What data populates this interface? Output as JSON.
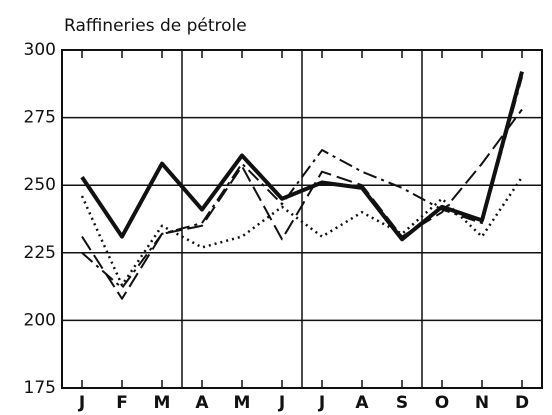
{
  "chart_data": {
    "type": "line",
    "title": "Raffineries de pétrole",
    "categories": [
      "J",
      "F",
      "M",
      "A",
      "M",
      "J",
      "J",
      "A",
      "S",
      "O",
      "N",
      "D"
    ],
    "series": [
      {
        "color": "#111111",
        "dash": "solid",
        "width": 4,
        "values": [
          253,
          231,
          258,
          241,
          261,
          245,
          251,
          249,
          230,
          242,
          237,
          292
        ]
      },
      {
        "color": "#111111",
        "dash": "dashdot",
        "width": 2,
        "values": [
          225,
          212,
          232,
          236,
          258,
          243,
          263,
          255,
          249,
          241,
          236,
          290
        ]
      },
      {
        "color": "#111111",
        "dash": "dashed",
        "width": 2,
        "values": [
          231,
          208,
          232,
          235,
          257,
          230,
          255,
          250,
          231,
          240,
          258,
          278
        ]
      },
      {
        "color": "#111111",
        "dash": "dotted",
        "width": 2.5,
        "values": [
          246,
          213,
          235,
          227,
          231,
          242,
          231,
          240,
          232,
          245,
          231,
          253
        ]
      }
    ],
    "ylim": [
      175,
      300
    ],
    "yticks": [
      175,
      200,
      225,
      250,
      275,
      300
    ],
    "grid": true
  }
}
